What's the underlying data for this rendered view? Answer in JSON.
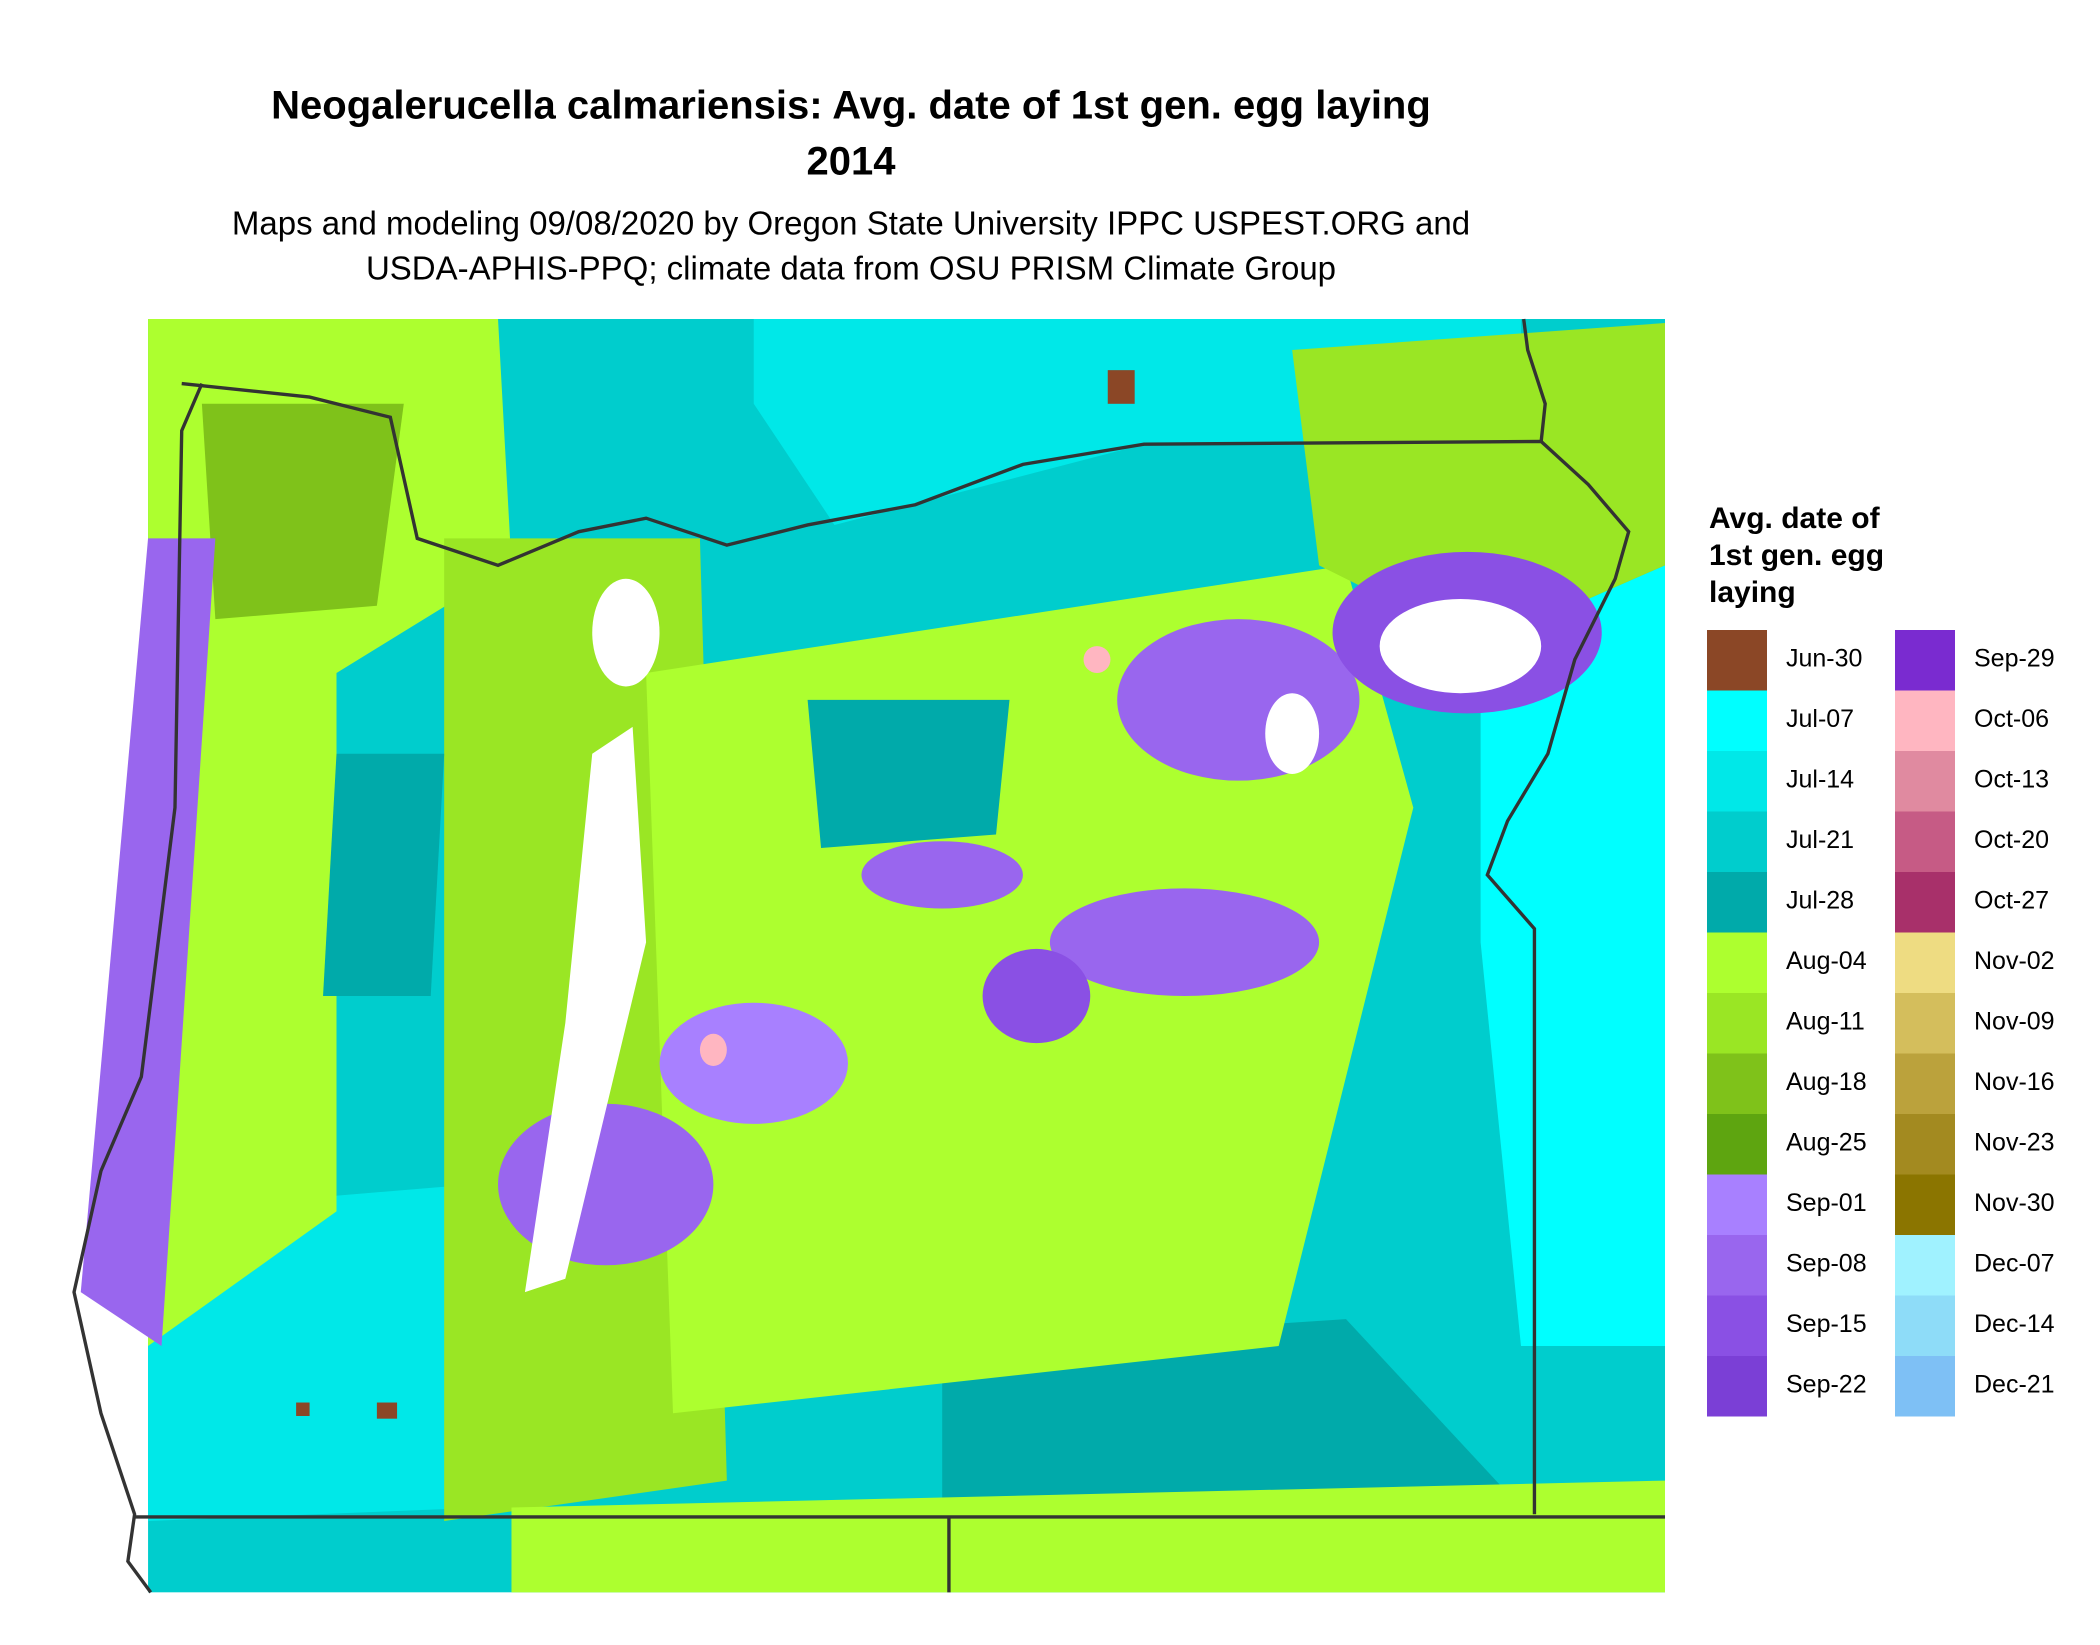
{
  "header": {
    "title": "Neogalerucella calmariensis: Avg. date of 1st gen. egg laying",
    "year": "2014",
    "subtitle": [
      "Maps and modeling 09/08/2020 by Oregon State University IPPC USPEST.ORG and",
      "USDA-APHIS-PPQ; climate data from OSU PRISM Climate Group"
    ]
  },
  "legend": {
    "title": [
      "Avg. date of",
      "1st gen. egg",
      "laying"
    ],
    "items": [
      {
        "label": "Jun-30",
        "color": "#8b4726"
      },
      {
        "label": "Jul-07",
        "color": "#00ffff"
      },
      {
        "label": "Jul-14",
        "color": "#00e8e8"
      },
      {
        "label": "Jul-21",
        "color": "#00cdcd"
      },
      {
        "label": "Jul-28",
        "color": "#00aaaa"
      },
      {
        "label": "Aug-04",
        "color": "#adff2f"
      },
      {
        "label": "Aug-11",
        "color": "#9ae624"
      },
      {
        "label": "Aug-18",
        "color": "#7fc21a"
      },
      {
        "label": "Aug-25",
        "color": "#5ea510"
      },
      {
        "label": "Sep-01",
        "color": "#a880ff"
      },
      {
        "label": "Sep-08",
        "color": "#9966ee"
      },
      {
        "label": "Sep-15",
        "color": "#8a50e4"
      },
      {
        "label": "Sep-22",
        "color": "#7b3fd6"
      },
      {
        "label": "Sep-29",
        "color": "#7a2bd0"
      },
      {
        "label": "Oct-06",
        "color": "#ffb6c1"
      },
      {
        "label": "Oct-13",
        "color": "#e08aa0"
      },
      {
        "label": "Oct-20",
        "color": "#c65b85"
      },
      {
        "label": "Oct-27",
        "color": "#a8306a"
      },
      {
        "label": "Nov-02",
        "color": "#eedc82"
      },
      {
        "label": "Nov-09",
        "color": "#d4be5c"
      },
      {
        "label": "Nov-16",
        "color": "#bba23c"
      },
      {
        "label": "Nov-23",
        "color": "#a38a20"
      },
      {
        "label": "Nov-30",
        "color": "#8b7500"
      },
      {
        "label": "Dec-07",
        "color": "#a0f2ff"
      },
      {
        "label": "Dec-14",
        "color": "#8edcf8"
      },
      {
        "label": "Dec-21",
        "color": "#7ec0f5"
      }
    ]
  }
}
